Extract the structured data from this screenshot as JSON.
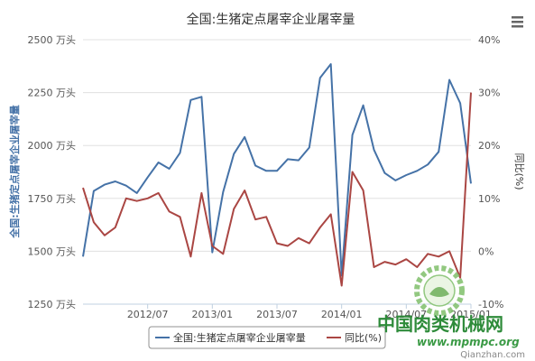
{
  "chart_data": {
    "type": "line",
    "title": "全国:生猪定点屠宰企业屠宰量",
    "ylabel_left": "全国:生猪定点屠宰企业屠宰量",
    "ylabel_right": "同比(%)",
    "left_axis": {
      "ticks": [
        1250,
        1500,
        1750,
        2000,
        2250,
        2500
      ],
      "unit_suffix": " 万头",
      "range": [
        1250,
        2500
      ]
    },
    "right_axis": {
      "ticks": [
        -10,
        0,
        10,
        20,
        30,
        40
      ],
      "unit_suffix": "%",
      "range": [
        -10,
        40
      ]
    },
    "x_tick_labels": [
      "2012/07",
      "2013/01",
      "2013/07",
      "2014/01",
      "2014/07",
      "2015/01"
    ],
    "x_tick_positions": [
      6,
      12,
      18,
      24,
      30,
      36
    ],
    "grid": "horizontal",
    "legend_position": "bottom",
    "series": [
      {
        "name": "全国:生猪定点屠宰企业屠宰量",
        "axis": "left",
        "color": "#4572a7",
        "values": [
          1475,
          1785,
          1815,
          1830,
          1810,
          1775,
          1850,
          1920,
          1890,
          1965,
          2215,
          2230,
          1495,
          1780,
          1960,
          2040,
          1905,
          1880,
          1880,
          1935,
          1930,
          1990,
          2320,
          2385,
          1385,
          2050,
          2190,
          1980,
          1870,
          1835,
          1860,
          1880,
          1910,
          1970,
          2310,
          2200,
          1820
        ]
      },
      {
        "name": "同比(%)",
        "axis": "right",
        "color": "#aa4643",
        "values": [
          12,
          5.5,
          3,
          4.5,
          10,
          9.5,
          10,
          11,
          7.5,
          6.5,
          -1,
          11,
          1,
          -0.5,
          8,
          11.5,
          6,
          6.5,
          1.5,
          1,
          2.5,
          1.5,
          4.5,
          7,
          -6.5,
          15,
          11.5,
          -3,
          -2,
          -2.5,
          -1.5,
          -3,
          -0.5,
          -1,
          0,
          -5,
          30
        ]
      }
    ]
  },
  "ui": {
    "menu_icon": "hamburger-menu-icon"
  },
  "watermark": {
    "main": "中国肉类机械网",
    "url": "www.mpmpc.org",
    "source": "Qianzhan.com"
  }
}
